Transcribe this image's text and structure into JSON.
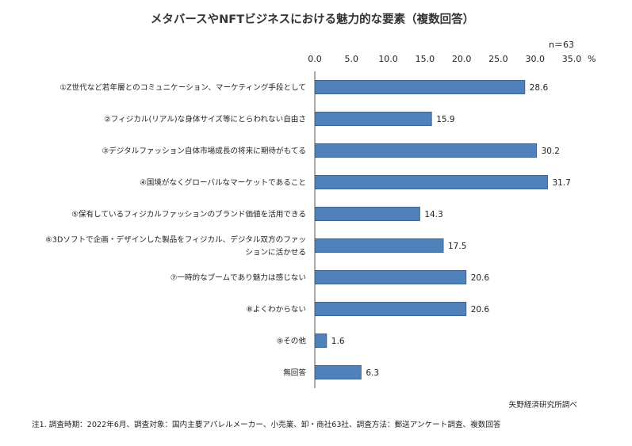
{
  "chart_data": {
    "type": "bar",
    "orientation": "horizontal",
    "title": "メタバースやNFTビジネスにおける魅力的な要素（複数回答）",
    "sample_size": "n＝63",
    "unit": "%",
    "xlim": [
      0,
      35
    ],
    "tick_labels": [
      "0.0",
      "5.0",
      "10.0",
      "15.0",
      "20.0",
      "25.0",
      "30.0",
      "35.0"
    ],
    "categories": [
      [
        "①Z世代など若年層とのコミュニケーション、マーケティング手段として"
      ],
      [
        "②フィジカル(リアル)な身体サイズ等にとらわれない自由さ"
      ],
      [
        "③デジタルファッション自体市場成長の将来に期待がもてる"
      ],
      [
        "④国境がなくグローバルなマーケットであること"
      ],
      [
        "⑤保有しているフィジカルファッションのブランド価値を活用できる"
      ],
      [
        "⑥3Dソフトで企画・デザインした製品をフィジカル、デジタル双方のファッ",
        "ションに活かせる"
      ],
      [
        "⑦一時的なブームであり魅力は感じない"
      ],
      [
        "⑧よくわからない"
      ],
      [
        "⑨その他"
      ],
      [
        "無回答"
      ]
    ],
    "values": [
      28.6,
      15.9,
      30.2,
      31.7,
      14.3,
      17.5,
      20.6,
      20.6,
      1.6,
      6.3
    ],
    "value_labels": [
      "28.6",
      "15.9",
      "30.2",
      "31.7",
      "14.3",
      "17.5",
      "20.6",
      "20.6",
      "1.6",
      "6.3"
    ],
    "bar_color": "#4f81bd",
    "source": "矢野経済研究所調べ",
    "note": "注1. 調査時期：2022年6月、調査対象：国内主要アパレルメーカー、小売業、卸・商社63社、調査方法：郵送アンケート調査、複数回答"
  }
}
